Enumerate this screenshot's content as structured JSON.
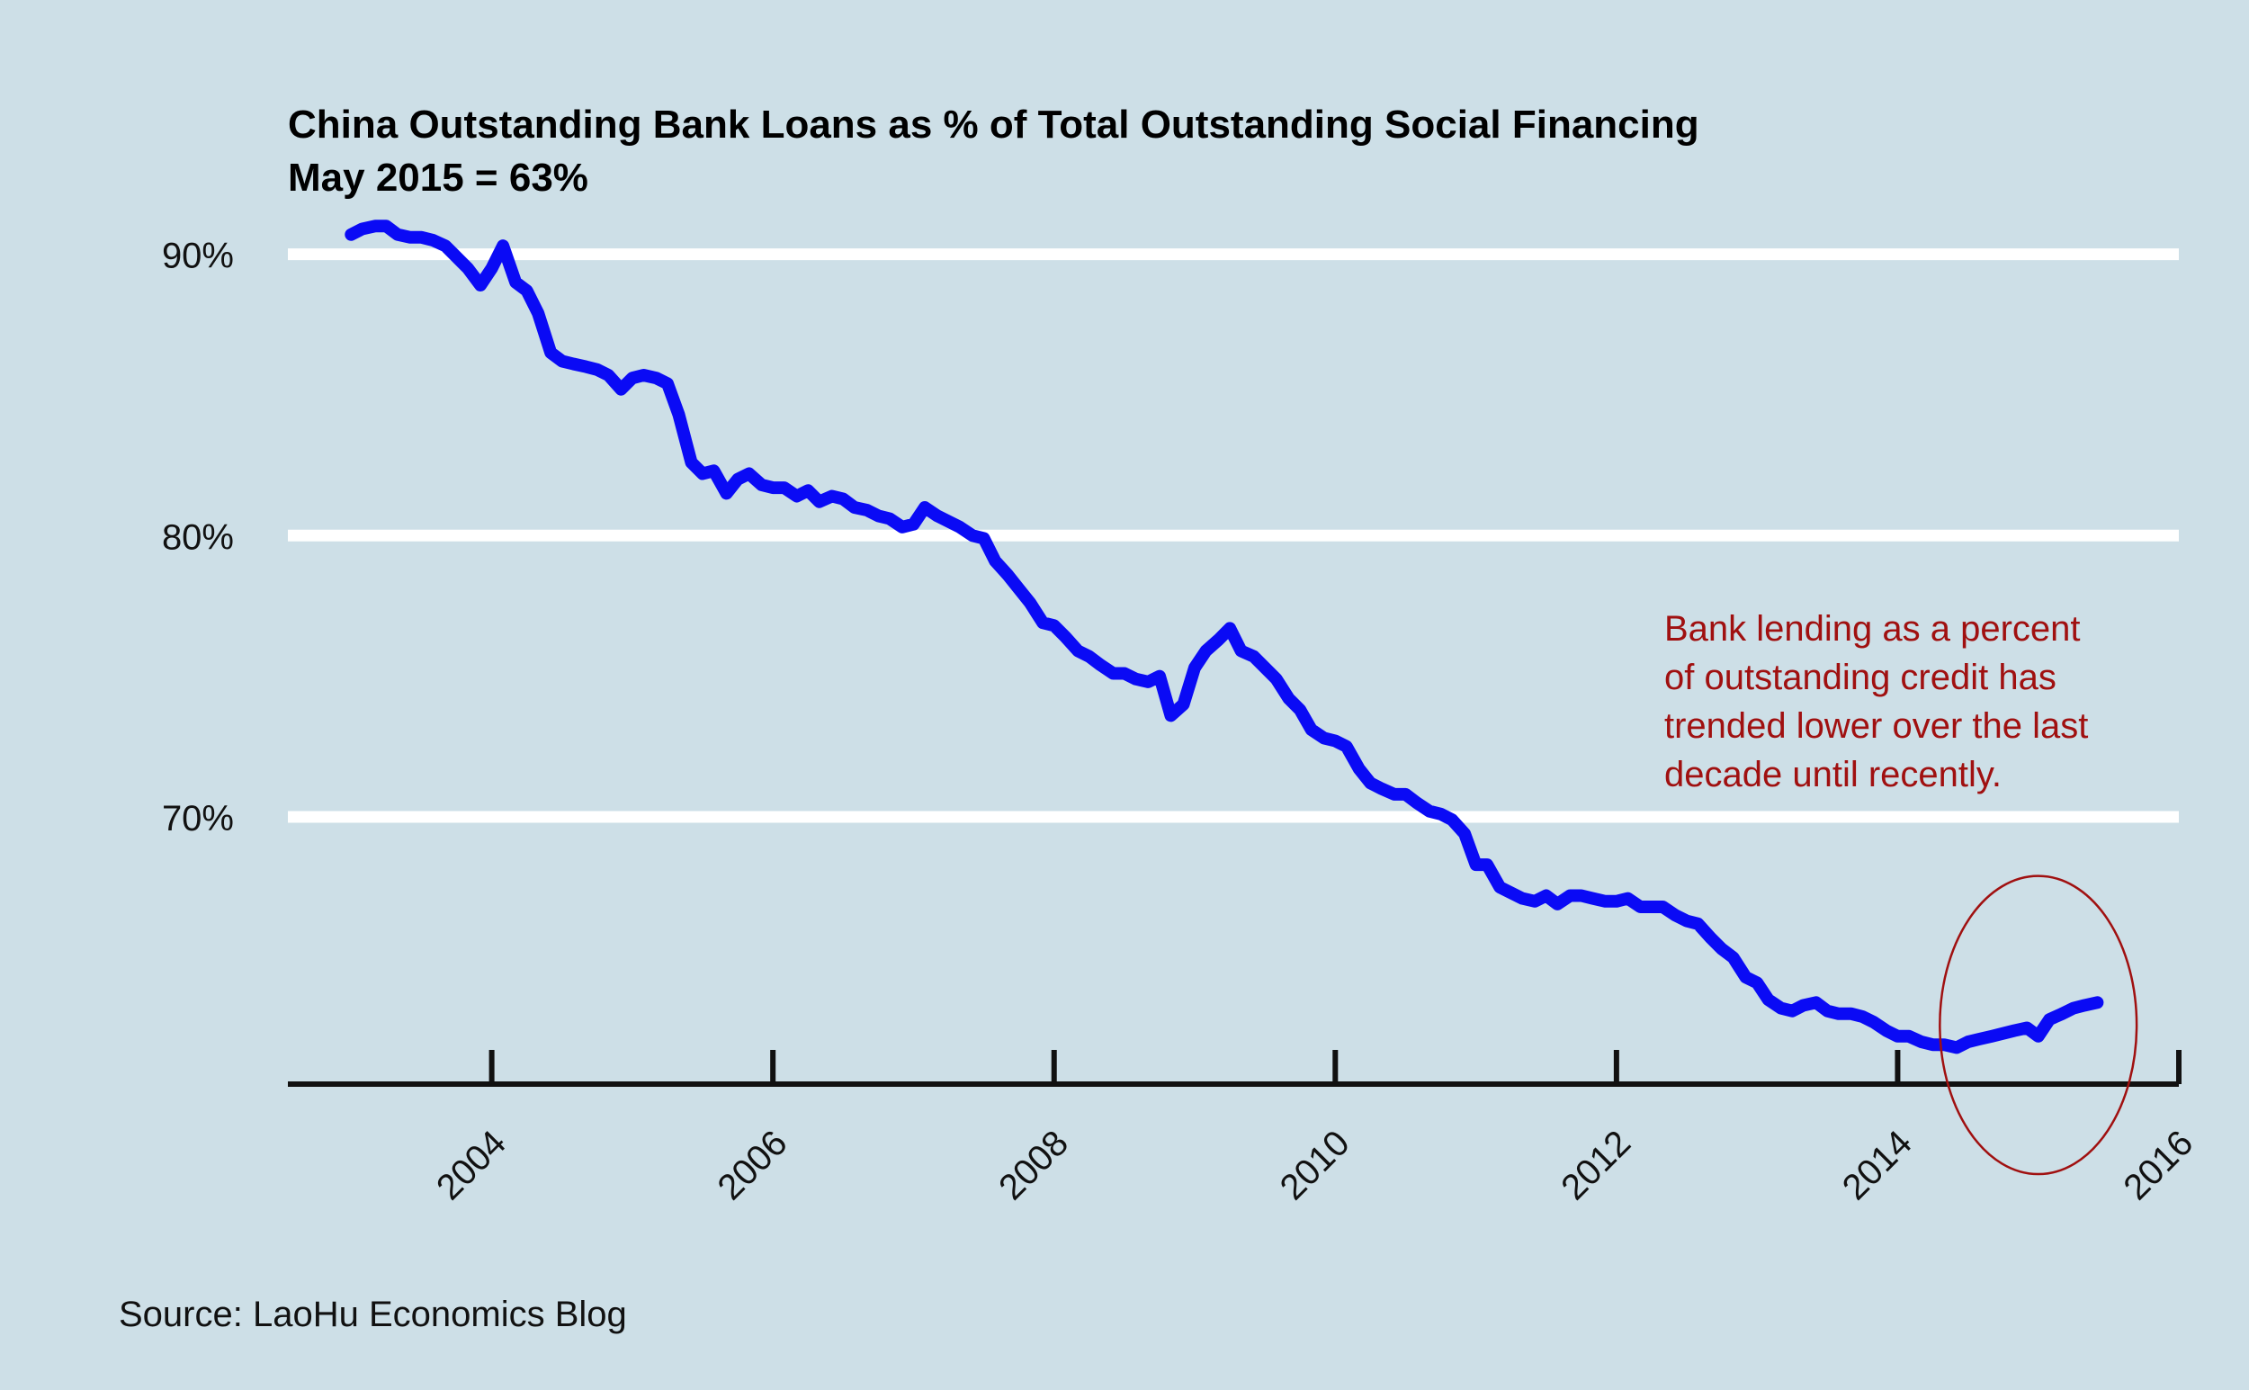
{
  "chart_data": {
    "type": "line",
    "title": "China Outstanding Bank Loans as % of Total Outstanding Social Financing",
    "subtitle": "May 2015 = 63%",
    "source": "Source: LaoHu Economics Blog",
    "annotation": [
      "Bank lending as a percent",
      "of outstanding credit has",
      "trended lower over the last",
      "decade until recently."
    ],
    "ylim": [
      60.5,
      93.6
    ],
    "xlim": [
      2002.55,
      2016.0
    ],
    "yticks": [
      90,
      80,
      70
    ],
    "ytick_labels": [
      "90%",
      "80%",
      "70%"
    ],
    "xticks": [
      2004,
      2006,
      2008,
      2010,
      2012,
      2014,
      2016
    ],
    "xtick_labels": [
      "2004",
      "2006",
      "2008",
      "2010",
      "2012",
      "2014",
      "2016"
    ],
    "grid": "horizontal",
    "colors": {
      "line": "#0a0af5",
      "background": "#cddfe7",
      "grid": "#ffffff",
      "annotation": "#a01010"
    },
    "highlight": {
      "x": 2015.0,
      "y": 62.6,
      "rx": 0.7,
      "ry": 5.3
    },
    "series": [
      {
        "x": [
          2003.0,
          2003.08,
          2003.17,
          2003.25,
          2003.33,
          2003.42,
          2003.5,
          2003.58,
          2003.67,
          2003.75,
          2003.83,
          2003.92,
          2004.0,
          2004.08,
          2004.17,
          2004.25,
          2004.33,
          2004.42,
          2004.5,
          2004.58,
          2004.67,
          2004.75,
          2004.83,
          2004.92,
          2005.0,
          2005.08,
          2005.17,
          2005.25,
          2005.33,
          2005.42,
          2005.5,
          2005.58,
          2005.67,
          2005.75,
          2005.83,
          2005.92,
          2006.0,
          2006.08,
          2006.17,
          2006.25,
          2006.33,
          2006.42,
          2006.5,
          2006.58,
          2006.67,
          2006.75,
          2006.83,
          2006.92,
          2007.0,
          2007.08,
          2007.17,
          2007.25,
          2007.33,
          2007.42,
          2007.5,
          2007.58,
          2007.67,
          2007.75,
          2007.83,
          2007.92,
          2008.0,
          2008.08,
          2008.17,
          2008.25,
          2008.33,
          2008.42,
          2008.5,
          2008.58,
          2008.67,
          2008.75,
          2008.83,
          2008.92,
          2009.0,
          2009.08,
          2009.17,
          2009.25,
          2009.33,
          2009.42,
          2009.5,
          2009.58,
          2009.67,
          2009.75,
          2009.83,
          2009.92,
          2010.0,
          2010.08,
          2010.17,
          2010.25,
          2010.33,
          2010.42,
          2010.5,
          2010.58,
          2010.67,
          2010.75,
          2010.83,
          2010.92,
          2011.0,
          2011.08,
          2011.17,
          2011.25,
          2011.33,
          2011.42,
          2011.5,
          2011.58,
          2011.67,
          2011.75,
          2011.83,
          2011.92,
          2012.0,
          2012.08,
          2012.17,
          2012.25,
          2012.33,
          2012.42,
          2012.5,
          2012.58,
          2012.67,
          2012.75,
          2012.83,
          2012.92,
          2013.0,
          2013.08,
          2013.17,
          2013.25,
          2013.33,
          2013.42,
          2013.5,
          2013.58,
          2013.67,
          2013.75,
          2013.83,
          2013.92,
          2014.0,
          2014.08,
          2014.17,
          2014.25,
          2014.33,
          2014.42,
          2014.5,
          2014.58,
          2014.67,
          2014.75,
          2014.83,
          2014.92,
          2015.0,
          2015.08,
          2015.17,
          2015.25,
          2015.33,
          2015.42
        ],
        "values": [
          90.7,
          90.9,
          91.0,
          91.0,
          90.7,
          90.6,
          90.6,
          90.5,
          90.3,
          89.9,
          89.5,
          88.9,
          89.5,
          90.3,
          89.0,
          88.7,
          87.9,
          86.5,
          86.2,
          86.1,
          86.0,
          85.9,
          85.7,
          85.2,
          85.6,
          85.7,
          85.6,
          85.4,
          84.3,
          82.6,
          82.2,
          82.3,
          81.5,
          82.0,
          82.2,
          81.8,
          81.7,
          81.7,
          81.4,
          81.6,
          81.2,
          81.4,
          81.3,
          81.0,
          80.9,
          80.7,
          80.6,
          80.3,
          80.4,
          81.0,
          80.7,
          80.5,
          80.3,
          80.0,
          79.9,
          79.1,
          78.6,
          78.1,
          77.6,
          76.9,
          76.8,
          76.4,
          75.9,
          75.7,
          75.4,
          75.1,
          75.1,
          74.9,
          74.8,
          75.0,
          73.6,
          74.0,
          75.3,
          75.9,
          76.3,
          76.7,
          75.9,
          75.7,
          75.3,
          74.9,
          74.2,
          73.8,
          73.1,
          72.8,
          72.7,
          72.5,
          71.7,
          71.2,
          71.0,
          70.8,
          70.8,
          70.5,
          70.2,
          70.1,
          69.9,
          69.4,
          68.3,
          68.3,
          67.5,
          67.3,
          67.1,
          67.0,
          67.2,
          66.9,
          67.2,
          67.2,
          67.1,
          67.0,
          67.0,
          67.1,
          66.8,
          66.8,
          66.8,
          66.5,
          66.3,
          66.2,
          65.7,
          65.3,
          65.0,
          64.3,
          64.1,
          63.5,
          63.2,
          63.1,
          63.3,
          63.4,
          63.1,
          63.0,
          63.0,
          62.9,
          62.7,
          62.4,
          62.2,
          62.2,
          62.0,
          61.9,
          61.9,
          61.8,
          62.0,
          62.1,
          62.2,
          62.3,
          62.4,
          62.5,
          62.2,
          62.8,
          63.0,
          63.2,
          63.3,
          63.4
        ]
      }
    ]
  }
}
